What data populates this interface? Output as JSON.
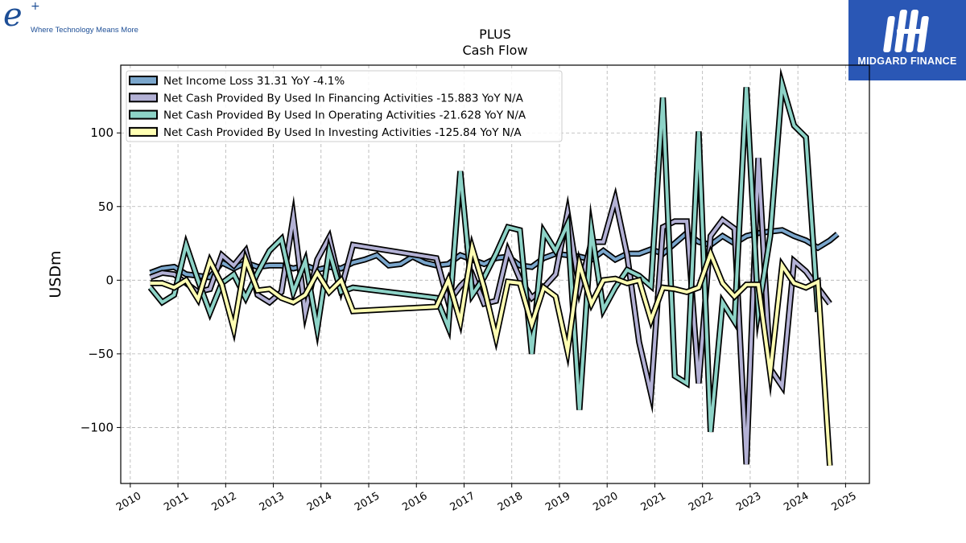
{
  "logos": {
    "left": {
      "mark": "e",
      "plus": "+",
      "tagline": "Where Technology Means More"
    },
    "right": {
      "brand": "MIDGARD FINANCE"
    }
  },
  "chart_data": {
    "type": "line",
    "title": "PLUS",
    "subtitle": "Cash Flow",
    "xlabel": "",
    "ylabel": "USDm",
    "xlim": [
      2009.8,
      2025.5
    ],
    "ylim": [
      -138,
      146
    ],
    "x_ticks": [
      "2010",
      "2011",
      "2012",
      "2013",
      "2014",
      "2015",
      "2016",
      "2017",
      "2018",
      "2019",
      "2020",
      "2021",
      "2022",
      "2023",
      "2024",
      "2025"
    ],
    "y_ticks": [
      -100,
      -50,
      0,
      50,
      100
    ],
    "y_tick_labels": [
      "−100",
      "−50",
      "0",
      "50",
      "100"
    ],
    "grid": true,
    "legend_position": "top-left",
    "series": [
      {
        "name": "Net Income Loss",
        "legend_label": "Net Income Loss  31.31 YoY -4.1%",
        "color": "#7aa6cc",
        "points": [
          [
            2010.42,
            5
          ],
          [
            2010.67,
            8
          ],
          [
            2010.92,
            9
          ],
          [
            2011.17,
            4
          ],
          [
            2011.42,
            3
          ],
          [
            2011.67,
            2
          ],
          [
            2011.92,
            12
          ],
          [
            2012.17,
            8
          ],
          [
            2012.42,
            12
          ],
          [
            2012.67,
            9
          ],
          [
            2012.92,
            10
          ],
          [
            2013.17,
            10
          ],
          [
            2013.42,
            8
          ],
          [
            2013.67,
            10
          ],
          [
            2013.92,
            7
          ],
          [
            2014.17,
            9
          ],
          [
            2014.42,
            8
          ],
          [
            2014.67,
            12
          ],
          [
            2014.92,
            14
          ],
          [
            2015.17,
            17
          ],
          [
            2015.42,
            10
          ],
          [
            2015.67,
            11
          ],
          [
            2015.92,
            16
          ],
          [
            2016.17,
            12
          ],
          [
            2016.42,
            10
          ],
          [
            2016.67,
            11
          ],
          [
            2016.92,
            17
          ],
          [
            2017.17,
            14
          ],
          [
            2017.42,
            11
          ],
          [
            2017.67,
            15
          ],
          [
            2017.92,
            16
          ],
          [
            2018.17,
            10
          ],
          [
            2018.42,
            9
          ],
          [
            2018.67,
            15
          ],
          [
            2018.92,
            18
          ],
          [
            2019.17,
            17
          ],
          [
            2019.42,
            16
          ],
          [
            2019.67,
            14
          ],
          [
            2019.92,
            20
          ],
          [
            2020.17,
            14
          ],
          [
            2020.42,
            18
          ],
          [
            2020.67,
            18
          ],
          [
            2020.92,
            21
          ],
          [
            2021.17,
            18
          ],
          [
            2021.42,
            25
          ],
          [
            2021.67,
            32
          ],
          [
            2021.92,
            26
          ],
          [
            2022.17,
            24
          ],
          [
            2022.42,
            30
          ],
          [
            2022.67,
            25
          ],
          [
            2022.92,
            30
          ],
          [
            2023.17,
            32
          ],
          [
            2023.42,
            33
          ],
          [
            2023.67,
            34
          ],
          [
            2023.92,
            30
          ],
          [
            2024.17,
            27
          ],
          [
            2024.42,
            22
          ],
          [
            2024.67,
            27
          ],
          [
            2024.83,
            31.31
          ]
        ]
      },
      {
        "name": "Net Cash Provided By Used In Financing Activities",
        "legend_label": "Net Cash Provided By Used In Financing Activities  -15.883 YoY N/A",
        "color": "#b3b1d5",
        "points": [
          [
            2010.42,
            2
          ],
          [
            2010.67,
            5
          ],
          [
            2010.92,
            4
          ],
          [
            2011.17,
            -2
          ],
          [
            2011.42,
            -8
          ],
          [
            2011.67,
            -6
          ],
          [
            2011.92,
            17
          ],
          [
            2012.17,
            10
          ],
          [
            2012.42,
            20
          ],
          [
            2012.67,
            -10
          ],
          [
            2012.92,
            -15
          ],
          [
            2013.17,
            -8
          ],
          [
            2013.42,
            43
          ],
          [
            2013.67,
            -22
          ],
          [
            2013.92,
            14
          ],
          [
            2014.17,
            29
          ],
          [
            2014.42,
            -6
          ],
          [
            2014.67,
            24
          ],
          [
            2016.42,
            15
          ],
          [
            2016.67,
            -15
          ],
          [
            2016.92,
            -4
          ],
          [
            2017.17,
            4
          ],
          [
            2017.42,
            -16
          ],
          [
            2017.67,
            -14
          ],
          [
            2017.92,
            20
          ],
          [
            2018.17,
            1
          ],
          [
            2018.42,
            -12
          ],
          [
            2018.67,
            -5
          ],
          [
            2018.92,
            4
          ],
          [
            2019.17,
            46
          ],
          [
            2019.42,
            -6
          ],
          [
            2019.67,
            26
          ],
          [
            2019.92,
            26
          ],
          [
            2020.17,
            55
          ],
          [
            2020.42,
            17
          ],
          [
            2020.67,
            -42
          ],
          [
            2020.92,
            -77
          ],
          [
            2021.17,
            36
          ],
          [
            2021.42,
            40
          ],
          [
            2021.67,
            40
          ],
          [
            2021.92,
            -70
          ],
          [
            2022.17,
            30
          ],
          [
            2022.42,
            41
          ],
          [
            2022.67,
            35
          ],
          [
            2022.92,
            -125
          ],
          [
            2023.17,
            83
          ],
          [
            2023.42,
            -60
          ],
          [
            2023.67,
            -72
          ],
          [
            2023.92,
            13
          ],
          [
            2024.17,
            6
          ],
          [
            2024.42,
            -5
          ],
          [
            2024.67,
            -15.883
          ]
        ]
      },
      {
        "name": "Net Cash Provided By Used In Operating Activities",
        "legend_label": "Net Cash Provided By Used In Operating Activities  -21.628 YoY N/A",
        "color": "#8dd3c7",
        "points": [
          [
            2010.42,
            -5
          ],
          [
            2010.67,
            -15
          ],
          [
            2010.92,
            -10
          ],
          [
            2011.17,
            24
          ],
          [
            2011.42,
            0
          ],
          [
            2011.67,
            -22
          ],
          [
            2011.92,
            -2
          ],
          [
            2012.17,
            4
          ],
          [
            2012.42,
            -12
          ],
          [
            2012.67,
            5
          ],
          [
            2012.92,
            20
          ],
          [
            2013.17,
            28
          ],
          [
            2013.42,
            -8
          ],
          [
            2013.67,
            13
          ],
          [
            2013.92,
            -33
          ],
          [
            2014.17,
            20
          ],
          [
            2014.42,
            -8
          ],
          [
            2014.67,
            -5
          ],
          [
            2016.42,
            -12
          ],
          [
            2016.67,
            -32
          ],
          [
            2016.92,
            74
          ],
          [
            2017.17,
            -10
          ],
          [
            2017.42,
            2
          ],
          [
            2017.67,
            18
          ],
          [
            2017.92,
            36
          ],
          [
            2018.17,
            34
          ],
          [
            2018.42,
            -50
          ],
          [
            2018.67,
            33
          ],
          [
            2018.92,
            20
          ],
          [
            2019.17,
            38
          ],
          [
            2019.42,
            -88
          ],
          [
            2019.67,
            34
          ],
          [
            2019.92,
            -20
          ],
          [
            2020.17,
            -5
          ],
          [
            2020.42,
            7
          ],
          [
            2020.67,
            3
          ],
          [
            2020.92,
            -4
          ],
          [
            2021.17,
            124
          ],
          [
            2021.42,
            -65
          ],
          [
            2021.67,
            -70
          ],
          [
            2021.92,
            101
          ],
          [
            2022.17,
            -103
          ],
          [
            2022.42,
            -15
          ],
          [
            2022.67,
            -28
          ],
          [
            2022.92,
            131
          ],
          [
            2023.17,
            -21
          ],
          [
            2023.42,
            30
          ],
          [
            2023.67,
            133
          ],
          [
            2023.92,
            105
          ],
          [
            2024.17,
            97
          ],
          [
            2024.42,
            -21.628
          ]
        ]
      },
      {
        "name": "Net Cash Provided By Used In Investing Activities",
        "legend_label": "Net Cash Provided By Used In Investing Activities  -125.84 YoY N/A",
        "color": "#ffffb3",
        "points": [
          [
            2010.42,
            -2
          ],
          [
            2010.67,
            -2
          ],
          [
            2010.92,
            -5
          ],
          [
            2011.17,
            0
          ],
          [
            2011.42,
            -13
          ],
          [
            2011.67,
            13
          ],
          [
            2011.92,
            -3
          ],
          [
            2012.17,
            -33
          ],
          [
            2012.42,
            14
          ],
          [
            2012.67,
            -7
          ],
          [
            2012.92,
            -6
          ],
          [
            2013.17,
            -12
          ],
          [
            2013.42,
            -15
          ],
          [
            2013.67,
            -10
          ],
          [
            2013.92,
            5
          ],
          [
            2014.17,
            -8
          ],
          [
            2014.42,
            0
          ],
          [
            2014.67,
            -21
          ],
          [
            2016.42,
            -18
          ],
          [
            2016.67,
            0
          ],
          [
            2016.92,
            -28
          ],
          [
            2017.17,
            22
          ],
          [
            2017.42,
            -5
          ],
          [
            2017.67,
            -39
          ],
          [
            2017.92,
            -1
          ],
          [
            2018.17,
            -2
          ],
          [
            2018.42,
            -30
          ],
          [
            2018.67,
            -5
          ],
          [
            2018.92,
            -11
          ],
          [
            2019.17,
            -48
          ],
          [
            2019.42,
            11
          ],
          [
            2019.67,
            -16
          ],
          [
            2019.92,
            0
          ],
          [
            2020.17,
            1
          ],
          [
            2020.42,
            -2
          ],
          [
            2020.67,
            0
          ],
          [
            2020.92,
            -27
          ],
          [
            2021.17,
            -5
          ],
          [
            2021.42,
            -6
          ],
          [
            2021.67,
            -8
          ],
          [
            2021.92,
            -5
          ],
          [
            2022.17,
            18
          ],
          [
            2022.42,
            -2
          ],
          [
            2022.67,
            -11
          ],
          [
            2022.92,
            -3
          ],
          [
            2023.17,
            -3
          ],
          [
            2023.42,
            -63
          ],
          [
            2023.67,
            10
          ],
          [
            2023.92,
            -2
          ],
          [
            2024.17,
            -5
          ],
          [
            2024.42,
            -1
          ],
          [
            2024.67,
            -125.84
          ]
        ]
      }
    ]
  }
}
